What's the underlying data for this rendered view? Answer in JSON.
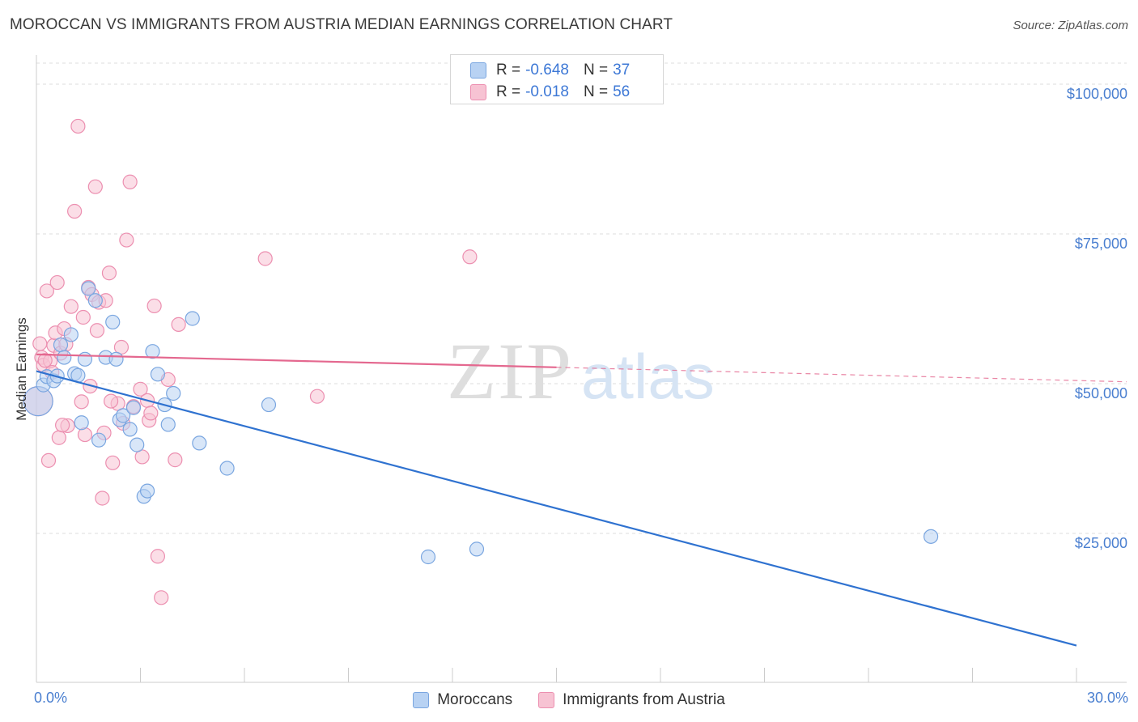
{
  "title": "MOROCCAN VS IMMIGRANTS FROM AUSTRIA MEDIAN EARNINGS CORRELATION CHART",
  "source": "Source: ZipAtlas.com",
  "watermark": {
    "zip": "ZIP",
    "atlas": "atlas"
  },
  "legend_top": {
    "rows": [
      {
        "r_label": "R =",
        "r_value": "-0.648",
        "n_label": "N =",
        "n_value": "37"
      },
      {
        "r_label": "R =",
        "r_value": "-0.018",
        "n_label": "N =",
        "n_value": "56"
      }
    ]
  },
  "legend_bottom": {
    "items": [
      "Moroccans",
      "Immigrants from Austria"
    ]
  },
  "x_axis": {
    "min_label": "0.0%",
    "max_label": "30.0%"
  },
  "colors": {
    "blue_fill": "#b8d2f3",
    "blue_stroke": "#7aa6e0",
    "blue_line": "#2f72d0",
    "pink_fill": "#f7c3d3",
    "pink_stroke": "#ec8fb0",
    "pink_line": "#e4688f",
    "grid": "#dcdcdc",
    "tick_label": "#4a7fd0"
  },
  "chart_data": {
    "type": "scatter",
    "title": "MOROCCAN VS IMMIGRANTS FROM AUSTRIA MEDIAN EARNINGS CORRELATION CHART",
    "xlabel": "",
    "ylabel": "Median Earnings",
    "xlim": [
      0,
      30
    ],
    "ylim": [
      0,
      105000
    ],
    "yticks": [
      25000,
      50000,
      75000,
      100000
    ],
    "ytick_labels": [
      "$25,000",
      "$50,000",
      "$75,000",
      "$100,000"
    ],
    "series": [
      {
        "name": "Moroccans",
        "r": -0.648,
        "n": 37,
        "trend": {
          "x": [
            0,
            30
          ],
          "y": [
            51000,
            5200
          ],
          "dash_from": null
        },
        "points": [
          [
            0.05,
            46000
          ],
          [
            0.2,
            48700
          ],
          [
            0.3,
            50100
          ],
          [
            0.5,
            49400
          ],
          [
            0.6,
            50200
          ],
          [
            0.7,
            55400
          ],
          [
            0.8,
            53300
          ],
          [
            1.0,
            57100
          ],
          [
            1.1,
            50600
          ],
          [
            1.2,
            50300
          ],
          [
            1.3,
            42400
          ],
          [
            1.4,
            53000
          ],
          [
            1.5,
            64800
          ],
          [
            1.7,
            62800
          ],
          [
            1.8,
            39500
          ],
          [
            2.0,
            53300
          ],
          [
            2.2,
            59200
          ],
          [
            2.3,
            53000
          ],
          [
            2.4,
            42900
          ],
          [
            2.5,
            43600
          ],
          [
            2.7,
            41300
          ],
          [
            2.8,
            44900
          ],
          [
            2.9,
            38700
          ],
          [
            3.1,
            30100
          ],
          [
            3.2,
            31000
          ],
          [
            3.35,
            54300
          ],
          [
            3.5,
            50500
          ],
          [
            3.7,
            45400
          ],
          [
            3.8,
            42100
          ],
          [
            3.95,
            47300
          ],
          [
            4.5,
            59800
          ],
          [
            4.7,
            39000
          ],
          [
            5.5,
            34800
          ],
          [
            6.7,
            45400
          ],
          [
            11.3,
            20000
          ],
          [
            12.7,
            21300
          ],
          [
            25.8,
            23400
          ]
        ]
      },
      {
        "name": "Immigrants from Austria",
        "r": -0.018,
        "n": 56,
        "trend": {
          "x": [
            0,
            30
          ],
          "y": [
            53800,
            49500
          ],
          "dash_from": 15
        },
        "points": [
          [
            0.05,
            46000
          ],
          [
            0.1,
            55600
          ],
          [
            0.15,
            53300
          ],
          [
            0.2,
            52000
          ],
          [
            0.3,
            64400
          ],
          [
            0.4,
            52700
          ],
          [
            0.5,
            55300
          ],
          [
            0.55,
            57400
          ],
          [
            0.6,
            65800
          ],
          [
            0.7,
            54000
          ],
          [
            0.8,
            58100
          ],
          [
            0.9,
            41900
          ],
          [
            1.0,
            61800
          ],
          [
            1.1,
            77700
          ],
          [
            1.2,
            91900
          ],
          [
            1.3,
            45900
          ],
          [
            1.4,
            40400
          ],
          [
            1.5,
            65000
          ],
          [
            1.6,
            63800
          ],
          [
            1.7,
            81800
          ],
          [
            1.8,
            62500
          ],
          [
            1.9,
            29800
          ],
          [
            2.0,
            62800
          ],
          [
            2.1,
            67400
          ],
          [
            2.2,
            35700
          ],
          [
            2.35,
            45600
          ],
          [
            2.5,
            42300
          ],
          [
            2.6,
            72900
          ],
          [
            2.7,
            82600
          ],
          [
            2.8,
            45100
          ],
          [
            3.0,
            48000
          ],
          [
            3.05,
            36700
          ],
          [
            3.2,
            46100
          ],
          [
            3.25,
            42800
          ],
          [
            3.4,
            61900
          ],
          [
            3.5,
            20100
          ],
          [
            3.6,
            13200
          ],
          [
            3.8,
            49600
          ],
          [
            4.0,
            36200
          ],
          [
            4.1,
            58800
          ],
          [
            6.6,
            69800
          ],
          [
            8.1,
            46800
          ],
          [
            12.5,
            70100
          ],
          [
            0.25,
            52800
          ],
          [
            0.85,
            55500
          ],
          [
            1.35,
            60000
          ],
          [
            2.45,
            55000
          ],
          [
            1.55,
            48500
          ],
          [
            0.35,
            36100
          ],
          [
            0.65,
            39900
          ],
          [
            1.75,
            57800
          ],
          [
            2.15,
            46000
          ],
          [
            3.3,
            44000
          ],
          [
            0.45,
            50800
          ],
          [
            0.75,
            42000
          ],
          [
            1.95,
            40700
          ]
        ]
      }
    ]
  }
}
